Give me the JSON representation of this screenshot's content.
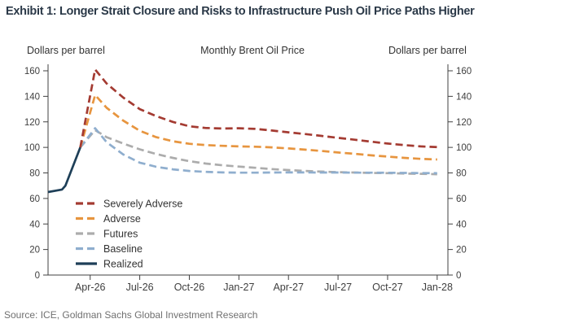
{
  "header": {
    "title": "Exhibit 1: Longer Strait Closure and Risks to Infrastructure Push Oil Price Paths Higher"
  },
  "axes_units": {
    "left": "Dollars per barrel",
    "center_title": "Monthly Brent Oil Price",
    "right": "Dollars per barrel"
  },
  "footer": {
    "source": "Source: ICE, Goldman Sachs Global Investment Research"
  },
  "colors": {
    "title_text": "#2B3948",
    "axis_text": "#3F3F3F",
    "axis_line": "#404040",
    "severely_adverse": "#A43B32",
    "adverse": "#E7953F",
    "futures": "#ACACAC",
    "baseline": "#8FAECE",
    "realized": "#1E3F58"
  },
  "chart_data": {
    "type": "line",
    "title": "Monthly Brent Oil Price",
    "ylabel_left": "Dollars per barrel",
    "ylabel_right": "Dollars per barrel",
    "ylim": [
      0,
      160
    ],
    "yticks": [
      0,
      20,
      40,
      60,
      80,
      100,
      120,
      140,
      160
    ],
    "x_unit": "months since Jan-2026 (m=0 is Jan-26)",
    "x_domain": [
      0.45,
      24.65
    ],
    "x_ticks": [
      {
        "m": 3,
        "label": "Apr-26"
      },
      {
        "m": 6,
        "label": "Jul-26"
      },
      {
        "m": 9,
        "label": "Oct-26"
      },
      {
        "m": 12,
        "label": "Jan-27"
      },
      {
        "m": 15,
        "label": "Apr-27"
      },
      {
        "m": 18,
        "label": "Jul-27"
      },
      {
        "m": 21,
        "label": "Oct-27"
      },
      {
        "m": 24,
        "label": "Jan-28"
      }
    ],
    "grid": false,
    "legend_position": "inside-lower-left",
    "draw_order": [
      2,
      3,
      1,
      0,
      4
    ],
    "series": [
      {
        "name": "Severely Adverse",
        "color": "#A43B32",
        "style": "dashed",
        "points": [
          [
            2.4,
            100
          ],
          [
            3.3,
            161
          ],
          [
            4,
            150
          ],
          [
            5,
            139
          ],
          [
            6,
            130
          ],
          [
            7,
            124.5
          ],
          [
            8,
            120
          ],
          [
            9,
            116.5
          ],
          [
            10,
            115.2
          ],
          [
            11,
            114.8
          ],
          [
            12,
            115
          ],
          [
            13,
            114.5
          ],
          [
            14,
            113.2
          ],
          [
            15,
            111.8
          ],
          [
            16,
            110.5
          ],
          [
            17,
            109
          ],
          [
            18,
            107.5
          ],
          [
            19,
            106
          ],
          [
            20,
            104.5
          ],
          [
            21,
            103
          ],
          [
            22,
            101.8
          ],
          [
            23,
            100.8
          ],
          [
            24,
            100.2
          ]
        ]
      },
      {
        "name": "Adverse",
        "color": "#E7953F",
        "style": "dashed",
        "points": [
          [
            2.4,
            100
          ],
          [
            3.3,
            141
          ],
          [
            4,
            131
          ],
          [
            5,
            121
          ],
          [
            6,
            113
          ],
          [
            7,
            108
          ],
          [
            8,
            104.8
          ],
          [
            9,
            102.8
          ],
          [
            10,
            101.8
          ],
          [
            11,
            101.2
          ],
          [
            12,
            100.8
          ],
          [
            13,
            100.5
          ],
          [
            14,
            100
          ],
          [
            15,
            99.2
          ],
          [
            16,
            98.2
          ],
          [
            17,
            97.2
          ],
          [
            18,
            96
          ],
          [
            19,
            95
          ],
          [
            20,
            93.8
          ],
          [
            21,
            92.8
          ],
          [
            22,
            91.8
          ],
          [
            23,
            91
          ],
          [
            24,
            90.5
          ]
        ]
      },
      {
        "name": "Futures",
        "color": "#ACACAC",
        "style": "dashed",
        "points": [
          [
            2.4,
            100
          ],
          [
            3.3,
            113.5
          ],
          [
            4,
            108
          ],
          [
            5,
            103
          ],
          [
            6,
            98.5
          ],
          [
            7,
            94.8
          ],
          [
            8,
            91.8
          ],
          [
            9,
            89.2
          ],
          [
            10,
            87.3
          ],
          [
            11,
            86
          ],
          [
            12,
            85
          ],
          [
            13,
            84
          ],
          [
            14,
            83
          ],
          [
            15,
            82.2
          ],
          [
            16,
            81.5
          ],
          [
            17,
            81
          ],
          [
            18,
            80.6
          ],
          [
            19,
            80.3
          ],
          [
            20,
            80
          ],
          [
            21,
            79.8
          ],
          [
            22,
            79.5
          ],
          [
            23,
            79.3
          ],
          [
            24,
            79
          ]
        ]
      },
      {
        "name": "Baseline",
        "color": "#8FAECE",
        "style": "dashed",
        "points": [
          [
            2.4,
            100
          ],
          [
            3.3,
            115
          ],
          [
            4,
            104
          ],
          [
            5,
            94.5
          ],
          [
            6,
            88
          ],
          [
            7,
            84.8
          ],
          [
            8,
            82.8
          ],
          [
            9,
            81.5
          ],
          [
            10,
            80.8
          ],
          [
            11,
            80.4
          ],
          [
            12,
            80.2
          ],
          [
            13,
            80.2
          ],
          [
            14,
            80.3
          ],
          [
            15,
            80.4
          ],
          [
            16,
            80.4
          ],
          [
            17,
            80.3
          ],
          [
            18,
            80.3
          ],
          [
            19,
            80.2
          ],
          [
            20,
            80.2
          ],
          [
            21,
            80.1
          ],
          [
            22,
            80
          ],
          [
            23,
            79.9
          ],
          [
            24,
            79.8
          ]
        ]
      },
      {
        "name": "Realized",
        "color": "#1E3F58",
        "style": "solid",
        "points": [
          [
            0.45,
            65
          ],
          [
            1.3,
            67
          ],
          [
            1.5,
            70
          ],
          [
            2.4,
            100
          ]
        ]
      }
    ]
  }
}
